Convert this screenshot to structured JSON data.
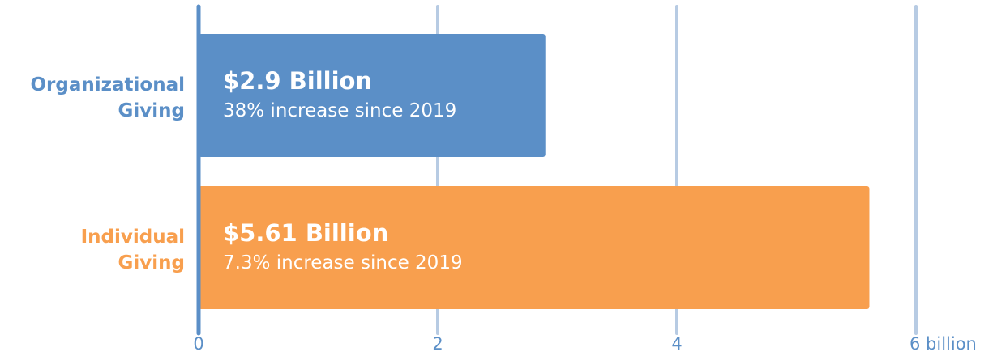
{
  "chart_data": {
    "type": "bar",
    "orientation": "horizontal",
    "categories": [
      "Organizational Giving",
      "Individual Giving"
    ],
    "category_label_lines": [
      [
        "Organizational",
        "Giving"
      ],
      [
        "Individual",
        "Giving"
      ]
    ],
    "values": [
      2.9,
      5.61
    ],
    "value_labels": [
      "$2.9 Billion",
      "$5.61 Billion"
    ],
    "annotations": [
      "38% increase since 2019",
      "7.3% increase since 2019"
    ],
    "xlim": [
      0,
      6
    ],
    "xticks": [
      0,
      2,
      4,
      6
    ],
    "xtick_labels": [
      "0",
      "2",
      "4",
      "6 billion"
    ],
    "grid": true,
    "legend": "none",
    "title": "",
    "xlabel": "",
    "ylabel": ""
  },
  "colors": {
    "organizational": "#5b8fc7",
    "individual": "#f89f4e",
    "gridline": "#b7cbe3",
    "axis": "#5b8fc7",
    "tick_text": "#5b8fc7"
  }
}
